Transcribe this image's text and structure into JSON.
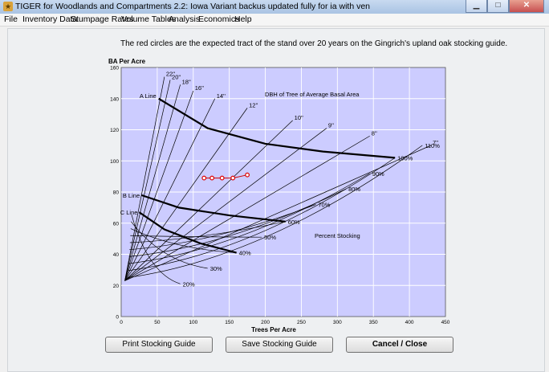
{
  "window": {
    "title": "TIGER for Woodlands and Compartments 2.2: Iowa Variant  backus updated fully for ia  with ven",
    "minimize_glyph": "▁",
    "maximize_glyph": "□",
    "close_glyph": "✕"
  },
  "menu": [
    "File",
    "Inventory Data",
    "Stumpage Rates",
    "Volume Tables",
    "Analysis",
    "Economics",
    "Help"
  ],
  "caption": "The red circles are the expected tract of the stand over 20 years on the Gingrich's upland oak stocking guide.",
  "buttons": {
    "print": "Print Stocking Guide",
    "save": "Save Stocking Guide",
    "cancel": "Cancel / Close"
  },
  "chart_data": {
    "type": "scatter",
    "title": "",
    "xlabel": "Trees Per Acre",
    "ylabel": "BA Per Acre",
    "xlim": [
      0,
      450
    ],
    "ylim": [
      0,
      160
    ],
    "x_ticks": [
      0,
      50,
      100,
      150,
      200,
      250,
      300,
      350,
      400,
      450
    ],
    "y_ticks": [
      0,
      20,
      40,
      60,
      80,
      100,
      120,
      140,
      160
    ],
    "grid": true,
    "background": "#ccccff",
    "annotations": {
      "dbh_title": "DBH of Tree of Average Basal Area",
      "percent_title": "Percent Stocking",
      "a_line": "A Line",
      "b_line": "B Line",
      "c_line": "C Line"
    },
    "dbh_lines": [
      {
        "label": "22''",
        "end": [
          60,
          154
        ]
      },
      {
        "label": "20''",
        "end": [
          68,
          152
        ]
      },
      {
        "label": "18''",
        "end": [
          82,
          149
        ]
      },
      {
        "label": "16''",
        "end": [
          100,
          145
        ]
      },
      {
        "label": "14''",
        "end": [
          130,
          140
        ]
      },
      {
        "label": "12''",
        "end": [
          175,
          134
        ]
      },
      {
        "label": "10''",
        "end": [
          238,
          126
        ]
      },
      {
        "label": "9''",
        "end": [
          285,
          121
        ]
      },
      {
        "label": "8''",
        "end": [
          345,
          116
        ]
      },
      {
        "label": "7''",
        "end": [
          430,
          110
        ]
      }
    ],
    "stocking_lines": [
      {
        "label": "110%",
        "end": [
          418,
          110
        ]
      },
      {
        "label": "100%",
        "end": [
          380,
          102
        ]
      },
      {
        "label": "90%",
        "end": [
          345,
          92
        ]
      },
      {
        "label": "80%",
        "end": [
          312,
          82
        ]
      },
      {
        "label": "70%",
        "end": [
          270,
          72
        ]
      },
      {
        "label": "60%",
        "end": [
          228,
          61
        ]
      },
      {
        "label": "50%",
        "end": [
          195,
          51
        ]
      },
      {
        "label": "40%",
        "end": [
          160,
          41
        ]
      },
      {
        "label": "30%",
        "end": [
          120,
          31
        ]
      },
      {
        "label": "20%",
        "end": [
          82,
          21
        ]
      }
    ],
    "thick_lines": {
      "A": [
        [
          52,
          140
        ],
        [
          120,
          121
        ],
        [
          200,
          111
        ],
        [
          280,
          106
        ],
        [
          380,
          102
        ]
      ],
      "B": [
        [
          28,
          78
        ],
        [
          80,
          70
        ],
        [
          150,
          65
        ],
        [
          228,
          61
        ]
      ],
      "C": [
        [
          25,
          67
        ],
        [
          60,
          56
        ],
        [
          110,
          47
        ],
        [
          160,
          41
        ]
      ]
    },
    "series": [
      {
        "values": [
          [
            115,
            89
          ],
          [
            126,
            89
          ],
          [
            140,
            89
          ],
          [
            155,
            89
          ],
          [
            175,
            91
          ]
        ]
      }
    ]
  }
}
